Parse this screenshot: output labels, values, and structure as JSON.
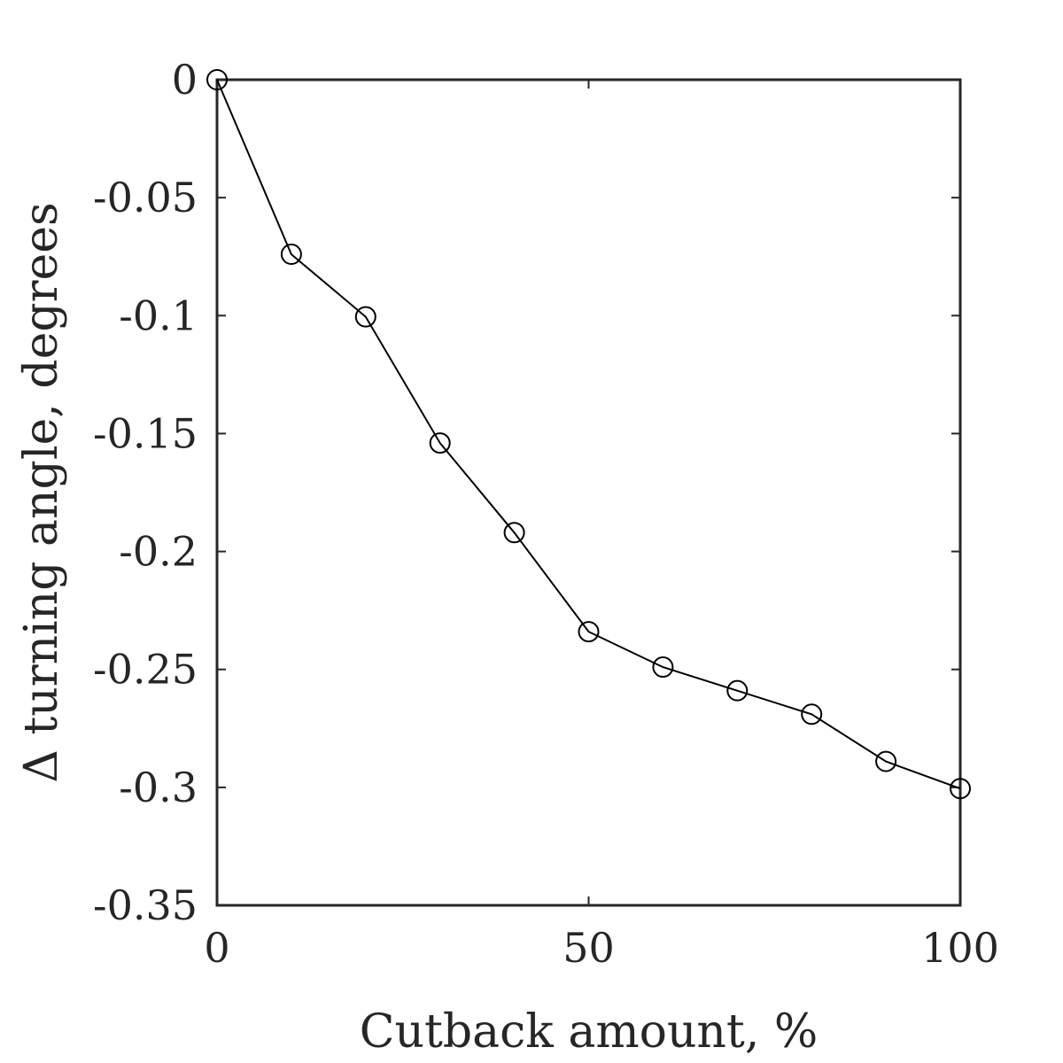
{
  "chart_data": {
    "type": "line",
    "title": "",
    "xlabel": "Cutback amount, %",
    "ylabel": "Δ turning angle, degrees",
    "xlim": [
      0,
      100
    ],
    "ylim": [
      -0.35,
      0
    ],
    "xticks": [
      0,
      50,
      100
    ],
    "xtick_labels": [
      "0",
      "50",
      "100"
    ],
    "yticks": [
      0,
      -0.05,
      -0.1,
      -0.15,
      -0.2,
      -0.25,
      -0.3,
      -0.35
    ],
    "ytick_labels": [
      "0",
      "-0.05",
      "-0.1",
      "-0.15",
      "-0.2",
      "-0.25",
      "-0.3",
      "-0.35"
    ],
    "grid": false,
    "box": true,
    "series": [
      {
        "x": [
          0,
          10,
          20,
          30,
          40,
          50,
          60,
          70,
          80,
          90,
          100
        ],
        "y": [
          0,
          -0.074,
          -0.1005,
          -0.154,
          -0.192,
          -0.234,
          -0.249,
          -0.259,
          -0.269,
          -0.289,
          -0.3005
        ],
        "marker": "open-circle",
        "color": "#000000"
      }
    ],
    "colors": {
      "axis": "#262626",
      "line": "#000000"
    }
  }
}
